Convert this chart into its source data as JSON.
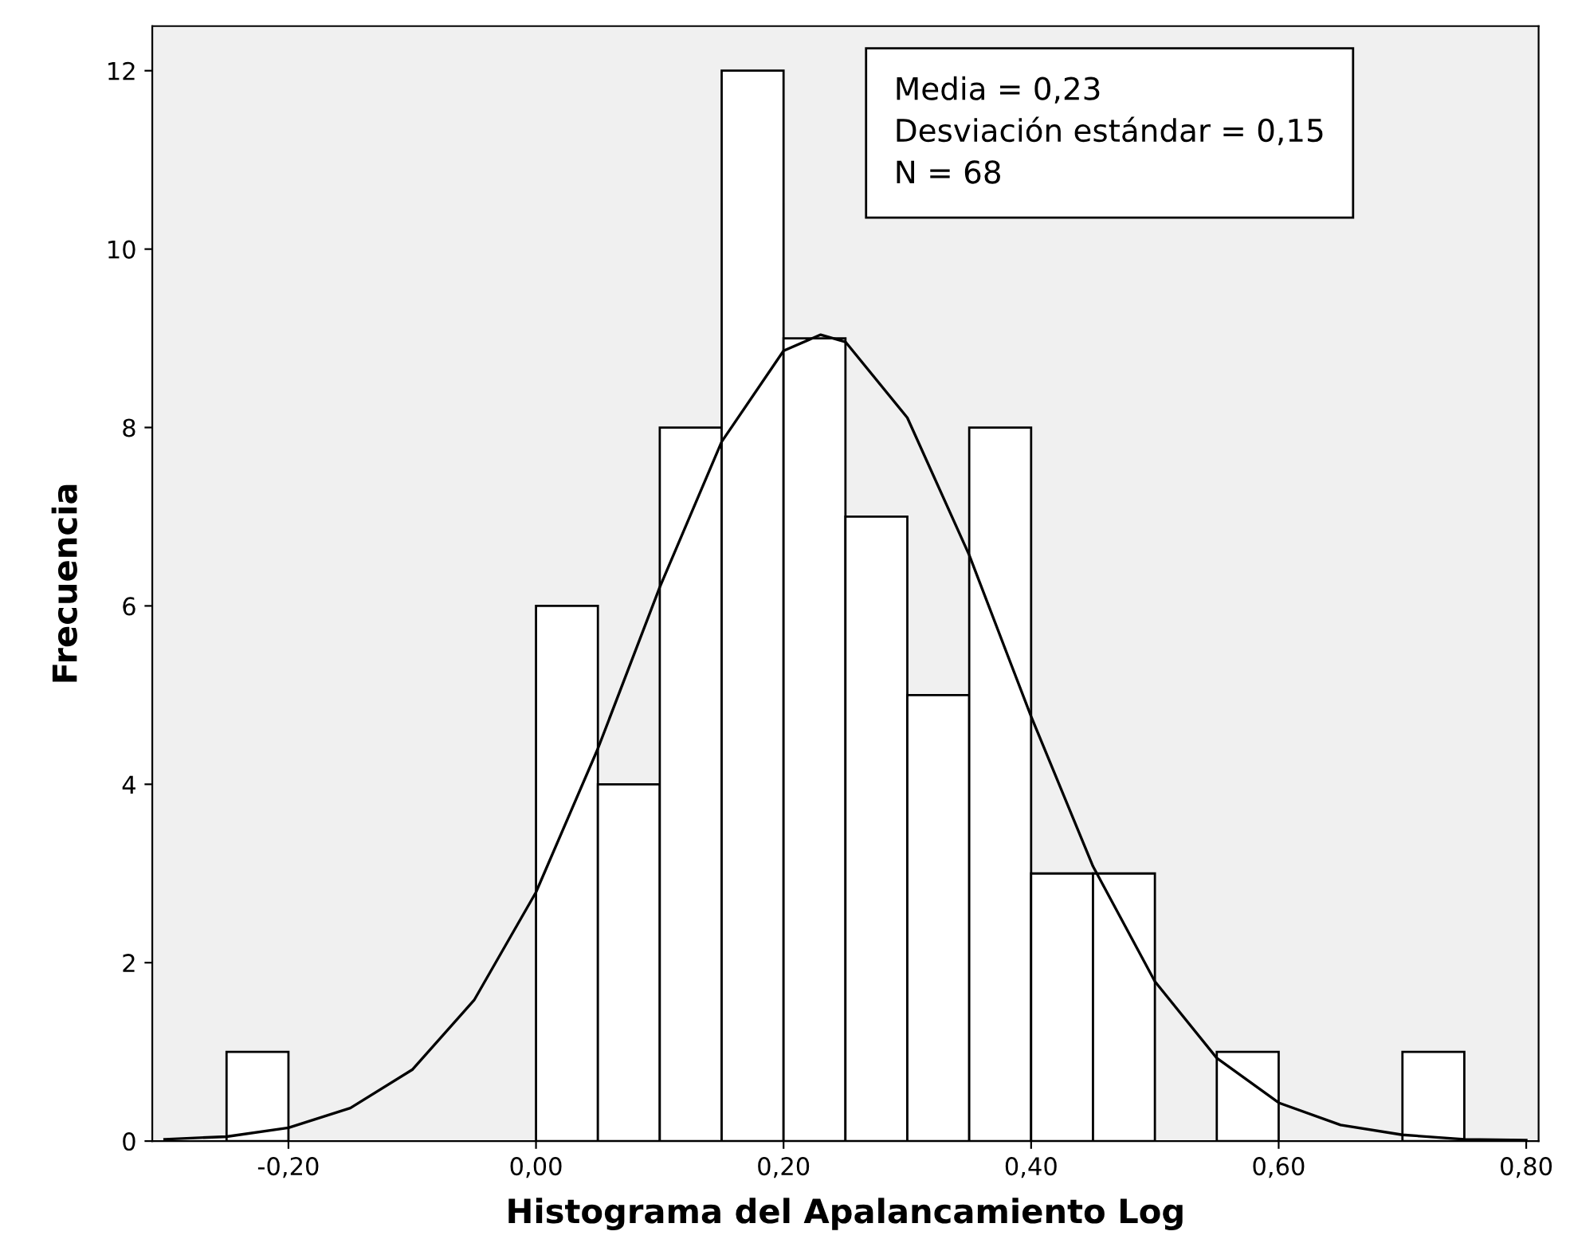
{
  "chart_data": {
    "type": "histogram",
    "xlabel": "Histograma del Apalancamiento Log",
    "ylabel": "Frecuencia",
    "bins": [
      -0.25,
      -0.2,
      -0.15,
      -0.1,
      -0.05,
      0.0,
      0.05,
      0.1,
      0.15,
      0.2,
      0.25,
      0.3,
      0.35,
      0.4,
      0.45,
      0.5,
      0.55,
      0.6,
      0.65,
      0.7,
      0.75
    ],
    "values": [
      1,
      0,
      0,
      0,
      0,
      6,
      4,
      8,
      12,
      9,
      7,
      5,
      8,
      3,
      3,
      0,
      1,
      0,
      0,
      1
    ],
    "color": "#ffffff",
    "series": [
      {
        "type": "line",
        "color": "#000000",
        "x": [
          -0.3,
          -0.25,
          -0.2,
          -0.15,
          -0.1,
          -0.05,
          0.0,
          0.05,
          0.1,
          0.15,
          0.2,
          0.23,
          0.25,
          0.3,
          0.35,
          0.4,
          0.45,
          0.5,
          0.55,
          0.6,
          0.65,
          0.7,
          0.75,
          0.8
        ],
        "values": [
          0.02,
          0.05,
          0.15,
          0.37,
          0.8,
          1.58,
          2.79,
          4.4,
          6.21,
          7.84,
          8.86,
          9.04,
          8.96,
          8.11,
          6.57,
          4.76,
          3.08,
          1.79,
          0.93,
          0.43,
          0.18,
          0.07,
          0.02,
          0.01
        ]
      }
    ],
    "annotations": [
      "Media = 0,23",
      "Desviación estándar = 0,15",
      "N = 68"
    ],
    "xlim": [
      -0.31,
      0.81
    ],
    "ylim": [
      0,
      12.5
    ],
    "xticks": [
      {
        "value": -0.2,
        "label": "-0,20"
      },
      {
        "value": 0.0,
        "label": "0,00"
      },
      {
        "value": 0.2,
        "label": "0,20"
      },
      {
        "value": 0.4,
        "label": "0,40"
      },
      {
        "value": 0.6,
        "label": "0,60"
      },
      {
        "value": 0.8,
        "label": "0,80"
      }
    ],
    "yticks": [
      0,
      2,
      4,
      6,
      8,
      10,
      12
    ],
    "grid": false,
    "legend": false
  }
}
